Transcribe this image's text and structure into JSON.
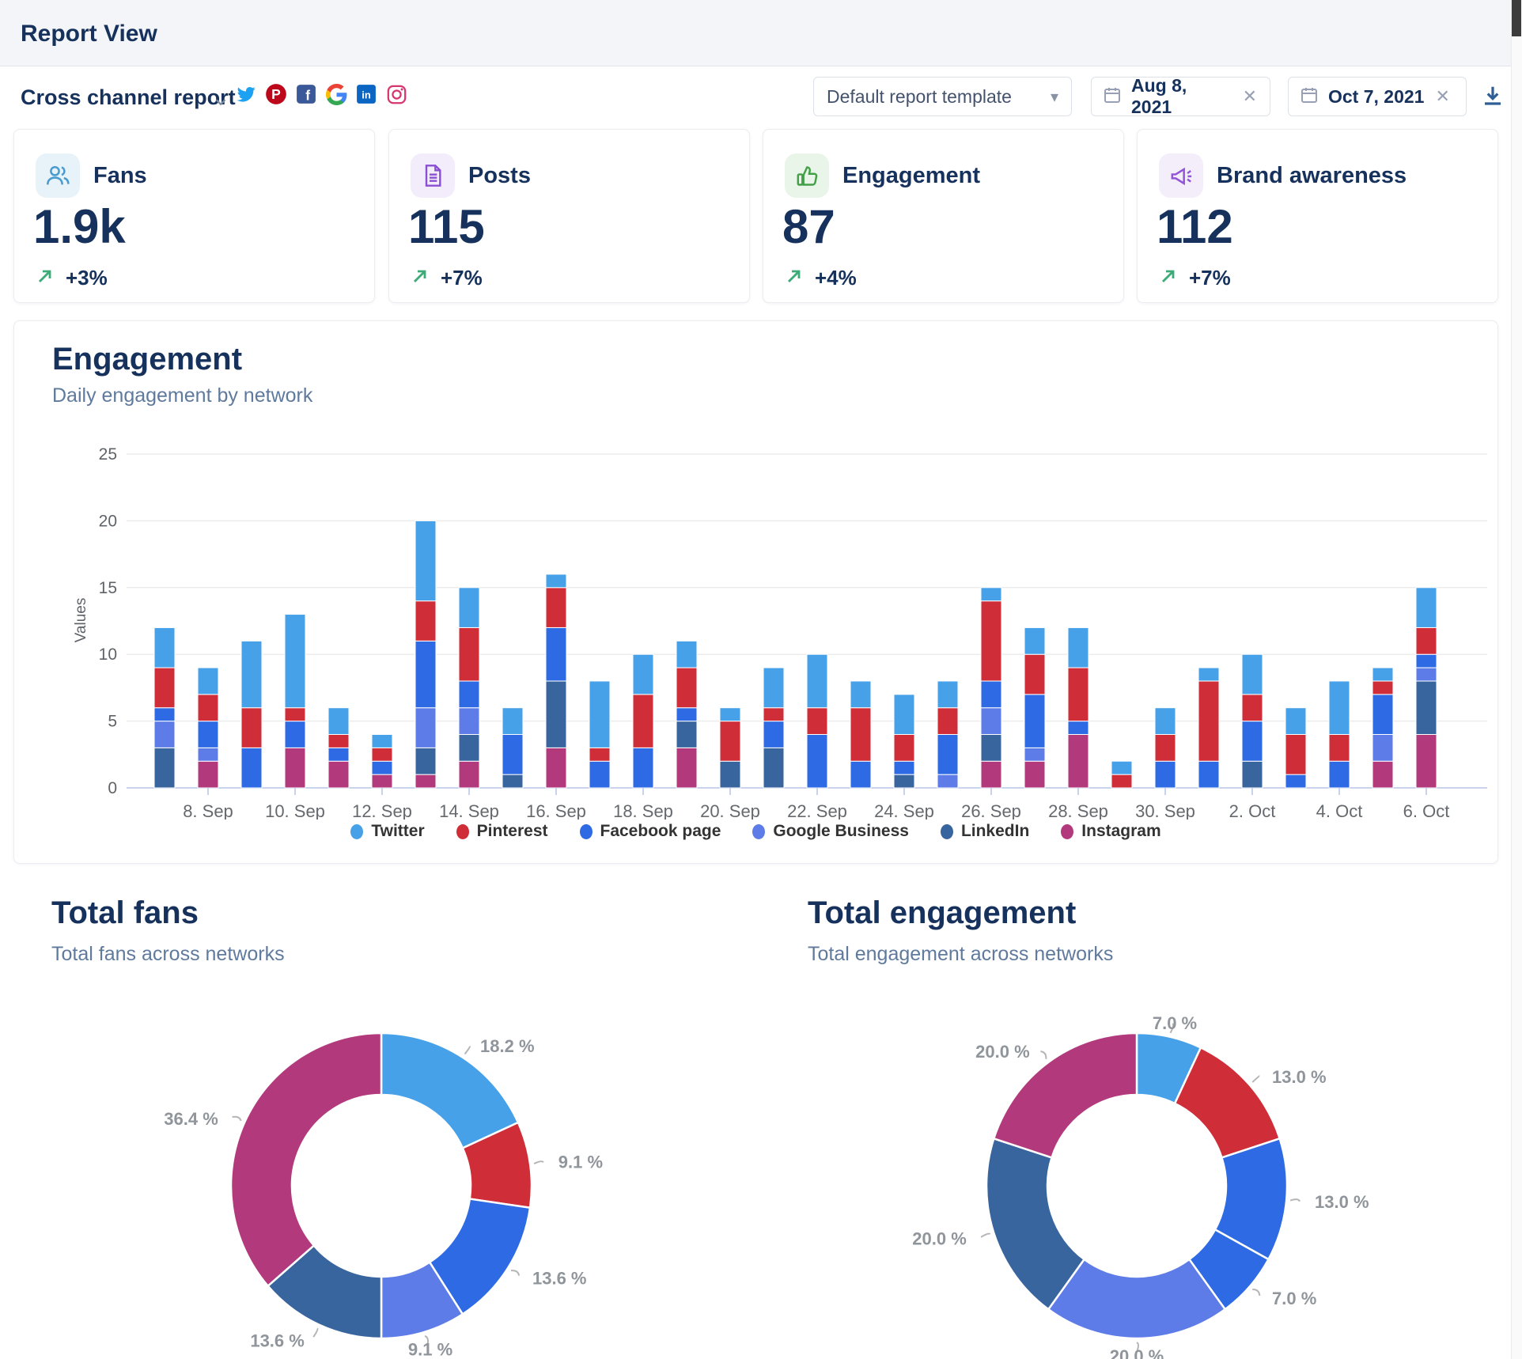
{
  "header": {
    "title": "Report View"
  },
  "toolbar": {
    "report_title": "Cross channel report",
    "social": [
      {
        "name": "twitter",
        "color": "#1da1f2"
      },
      {
        "name": "pinterest",
        "color": "#bd081c"
      },
      {
        "name": "facebook",
        "color": "#3b5998"
      },
      {
        "name": "google",
        "color": "#4285F4"
      },
      {
        "name": "linkedin",
        "color": "#0a66c2"
      },
      {
        "name": "instagram",
        "color": "#d6356f"
      }
    ],
    "template_select": {
      "value": "Default report template"
    },
    "date_from": "Aug 8, 2021",
    "date_to": "Oct 7, 2021"
  },
  "stats": [
    {
      "label": "Fans",
      "value": "1.9k",
      "trend": "+3%",
      "icon": "users-icon",
      "icon_color": "#4a9bd0",
      "icon_bg": "#e7f3f9"
    },
    {
      "label": "Posts",
      "value": "115",
      "trend": "+7%",
      "icon": "document-icon",
      "icon_color": "#8a4fd3",
      "icon_bg": "#f2ecfb"
    },
    {
      "label": "Engagement",
      "value": "87",
      "trend": "+4%",
      "icon": "thumb-up-icon",
      "icon_color": "#43a047",
      "icon_bg": "#eaf5ea"
    },
    {
      "label": "Brand awareness",
      "value": "112",
      "trend": "+7%",
      "icon": "megaphone-icon",
      "icon_color": "#9153d8",
      "icon_bg": "#f4edfa"
    }
  ],
  "colors": {
    "navy": "#16325c",
    "subtitle": "#5f7a9d",
    "trend_green": "#3cab77",
    "axis_line": "#c9d3ee",
    "gridline": "#ececec",
    "axis_text": "#5f6368",
    "donut_label": "#8f959b"
  },
  "engagement_chart": {
    "title": "Engagement",
    "subtitle": "Daily engagement by network",
    "chart_data": {
      "type": "bar",
      "stacked": true,
      "ylabel": "Values",
      "ylim": [
        0,
        25
      ],
      "yticks": [
        0,
        5,
        10,
        15,
        20,
        25
      ],
      "grid": true,
      "legend_position": "bottom",
      "x": [
        "7. Sep",
        "8. Sep",
        "9. Sep",
        "10. Sep",
        "11. Sep",
        "12. Sep",
        "13. Sep",
        "14. Sep",
        "15. Sep",
        "16. Sep",
        "17. Sep",
        "18. Sep",
        "19. Sep",
        "20. Sep",
        "21. Sep",
        "22. Sep",
        "23. Sep",
        "24. Sep",
        "25. Sep",
        "26. Sep",
        "27. Sep",
        "28. Sep",
        "29. Sep",
        "30. Sep",
        "1. Oct",
        "2. Oct",
        "3. Oct",
        "4. Oct",
        "5. Oct",
        "6. Oct"
      ],
      "tick_labels": [
        "8. Sep",
        "10. Sep",
        "12. Sep",
        "14. Sep",
        "16. Sep",
        "18. Sep",
        "20. Sep",
        "22. Sep",
        "24. Sep",
        "26. Sep",
        "28. Sep",
        "30. Sep",
        "2. Oct",
        "4. Oct",
        "6. Oct"
      ],
      "stack_order_bottom_to_top": [
        "Instagram",
        "LinkedIn",
        "Google Business",
        "Facebook page",
        "Pinterest",
        "Twitter"
      ],
      "series": [
        {
          "name": "Twitter",
          "color": "#47a1e8",
          "values": [
            3,
            2,
            5,
            7,
            2,
            1,
            6,
            3,
            2,
            1,
            5,
            3,
            2,
            1,
            3,
            4,
            2,
            3,
            2,
            1,
            2,
            3,
            1,
            2,
            1,
            3,
            2,
            4,
            1,
            3
          ]
        },
        {
          "name": "Pinterest",
          "color": "#cf2d38",
          "values": [
            3,
            2,
            3,
            1,
            1,
            1,
            3,
            4,
            0,
            3,
            1,
            4,
            3,
            3,
            1,
            2,
            4,
            2,
            2,
            6,
            3,
            4,
            1,
            2,
            6,
            2,
            3,
            2,
            1,
            2
          ]
        },
        {
          "name": "Facebook page",
          "color": "#2d6ae3",
          "values": [
            1,
            2,
            3,
            2,
            1,
            1,
            5,
            2,
            3,
            4,
            2,
            3,
            1,
            0,
            2,
            4,
            2,
            1,
            3,
            2,
            4,
            1,
            0,
            2,
            2,
            3,
            1,
            2,
            3,
            1
          ]
        },
        {
          "name": "Google Business",
          "color": "#5e7ce8",
          "values": [
            2,
            1,
            0,
            0,
            0,
            0,
            3,
            2,
            0,
            0,
            0,
            0,
            0,
            0,
            0,
            0,
            0,
            0,
            1,
            2,
            1,
            0,
            0,
            0,
            0,
            0,
            0,
            0,
            2,
            1
          ]
        },
        {
          "name": "LinkedIn",
          "color": "#38659e",
          "values": [
            3,
            0,
            0,
            0,
            0,
            0,
            2,
            2,
            1,
            5,
            0,
            0,
            2,
            2,
            3,
            0,
            0,
            1,
            0,
            2,
            0,
            0,
            0,
            0,
            0,
            2,
            0,
            0,
            0,
            4
          ]
        },
        {
          "name": "Instagram",
          "color": "#b23a7c",
          "values": [
            0,
            2,
            0,
            3,
            2,
            1,
            1,
            2,
            0,
            3,
            0,
            0,
            3,
            0,
            0,
            0,
            0,
            0,
            0,
            2,
            2,
            4,
            0,
            0,
            0,
            0,
            0,
            0,
            2,
            4
          ]
        }
      ]
    }
  },
  "total_fans": {
    "title": "Total fans",
    "subtitle": "Total fans across networks",
    "chart_data": {
      "type": "pie",
      "donut": true,
      "slices": [
        {
          "label": "18.2 %",
          "value": 18.2,
          "color": "#47a1e8"
        },
        {
          "label": "9.1 %",
          "value": 9.1,
          "color": "#cf2d38"
        },
        {
          "label": "13.6 %",
          "value": 13.6,
          "color": "#2d6ae3"
        },
        {
          "label": "9.1 %",
          "value": 9.1,
          "color": "#5e7ce8"
        },
        {
          "label": "13.6 %",
          "value": 13.6,
          "color": "#38659e"
        },
        {
          "label": "36.4 %",
          "value": 36.4,
          "color": "#b23a7c"
        }
      ]
    }
  },
  "total_engagement": {
    "title": "Total engagement",
    "subtitle": "Total engagement across networks",
    "chart_data": {
      "type": "pie",
      "donut": true,
      "slices": [
        {
          "label": "7.0 %",
          "value": 7,
          "color": "#47a1e8"
        },
        {
          "label": "13.0 %",
          "value": 13,
          "color": "#cf2d38"
        },
        {
          "label": "13.0 %",
          "value": 13,
          "color": "#2d6ae3"
        },
        {
          "label": "7.0 %",
          "value": 7,
          "color": "#2d6ae3"
        },
        {
          "label": "20.0 %",
          "value": 20,
          "color": "#5e7ce8"
        },
        {
          "label": "20.0 %",
          "value": 20,
          "color": "#38659e"
        },
        {
          "label": "20.0 %",
          "value": 20,
          "color": "#b23a7c"
        }
      ]
    }
  }
}
